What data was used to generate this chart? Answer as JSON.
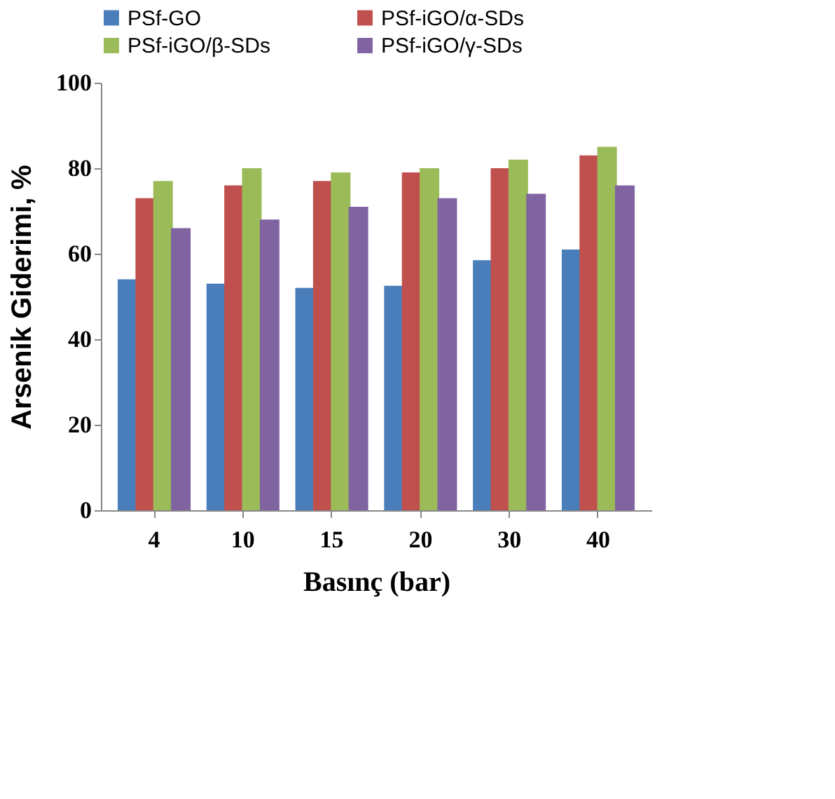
{
  "chart_data": {
    "type": "bar",
    "xlabel": "Basınç (bar)",
    "ylabel": "Arsenik Giderimi, %",
    "categories": [
      "4",
      "10",
      "15",
      "20",
      "30",
      "40"
    ],
    "series": [
      {
        "name": "PSf-GO",
        "color": "#4a7ebb",
        "values": [
          54,
          53,
          52,
          52.5,
          58.5,
          61
        ]
      },
      {
        "name": "PSf-iGO/α-SDs",
        "color": "#c0504d",
        "values": [
          73,
          76,
          77,
          79,
          80,
          83
        ]
      },
      {
        "name": "PSf-iGO/β-SDs",
        "color": "#9bbb59",
        "values": [
          77,
          80,
          79,
          80,
          82,
          85
        ]
      },
      {
        "name": "PSf-iGO/γ-SDs",
        "color": "#8064a2",
        "values": [
          66,
          68,
          71,
          73,
          74,
          76
        ]
      }
    ],
    "ylim": [
      0,
      100
    ],
    "yticks": [
      0,
      20,
      40,
      60,
      80,
      100
    ],
    "grid": false,
    "legend": "top"
  }
}
